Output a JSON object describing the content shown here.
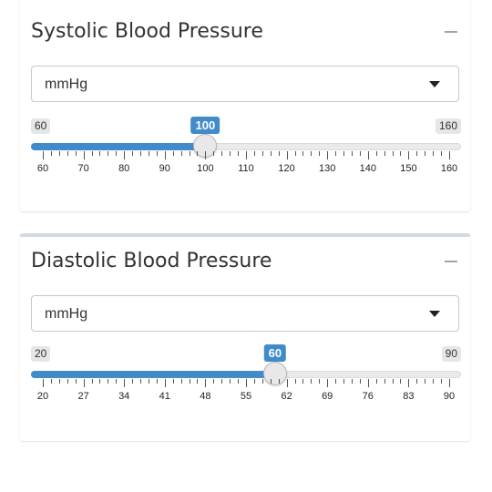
{
  "systolic": {
    "title": "Systolic Blood Pressure",
    "unit": "mmHg",
    "min": 60,
    "max": 160,
    "value": 100,
    "min_label": "60",
    "max_label": "160",
    "value_label": "100",
    "ticks": [
      "60",
      "70",
      "80",
      "90",
      "100",
      "110",
      "120",
      "130",
      "140",
      "150",
      "160"
    ],
    "tick_values": [
      60,
      70,
      80,
      90,
      100,
      110,
      120,
      130,
      140,
      150,
      160
    ]
  },
  "diastolic": {
    "title": "Diastolic Blood Pressure",
    "unit": "mmHg",
    "min": 20,
    "max": 90,
    "value": 60,
    "min_label": "20",
    "max_label": "90",
    "value_label": "60",
    "ticks": [
      "20",
      "27",
      "34",
      "41",
      "48",
      "55",
      "62",
      "69",
      "76",
      "83",
      "90"
    ],
    "tick_values": [
      20,
      27,
      34,
      41,
      48,
      55,
      62,
      69,
      76,
      83,
      90
    ]
  },
  "colors": {
    "accent": "#428bca",
    "track": "#eaeaea",
    "label_bg": "#e6e6e6"
  },
  "icons": {
    "collapse": "minus-icon",
    "dropdown": "caret-down-icon"
  }
}
